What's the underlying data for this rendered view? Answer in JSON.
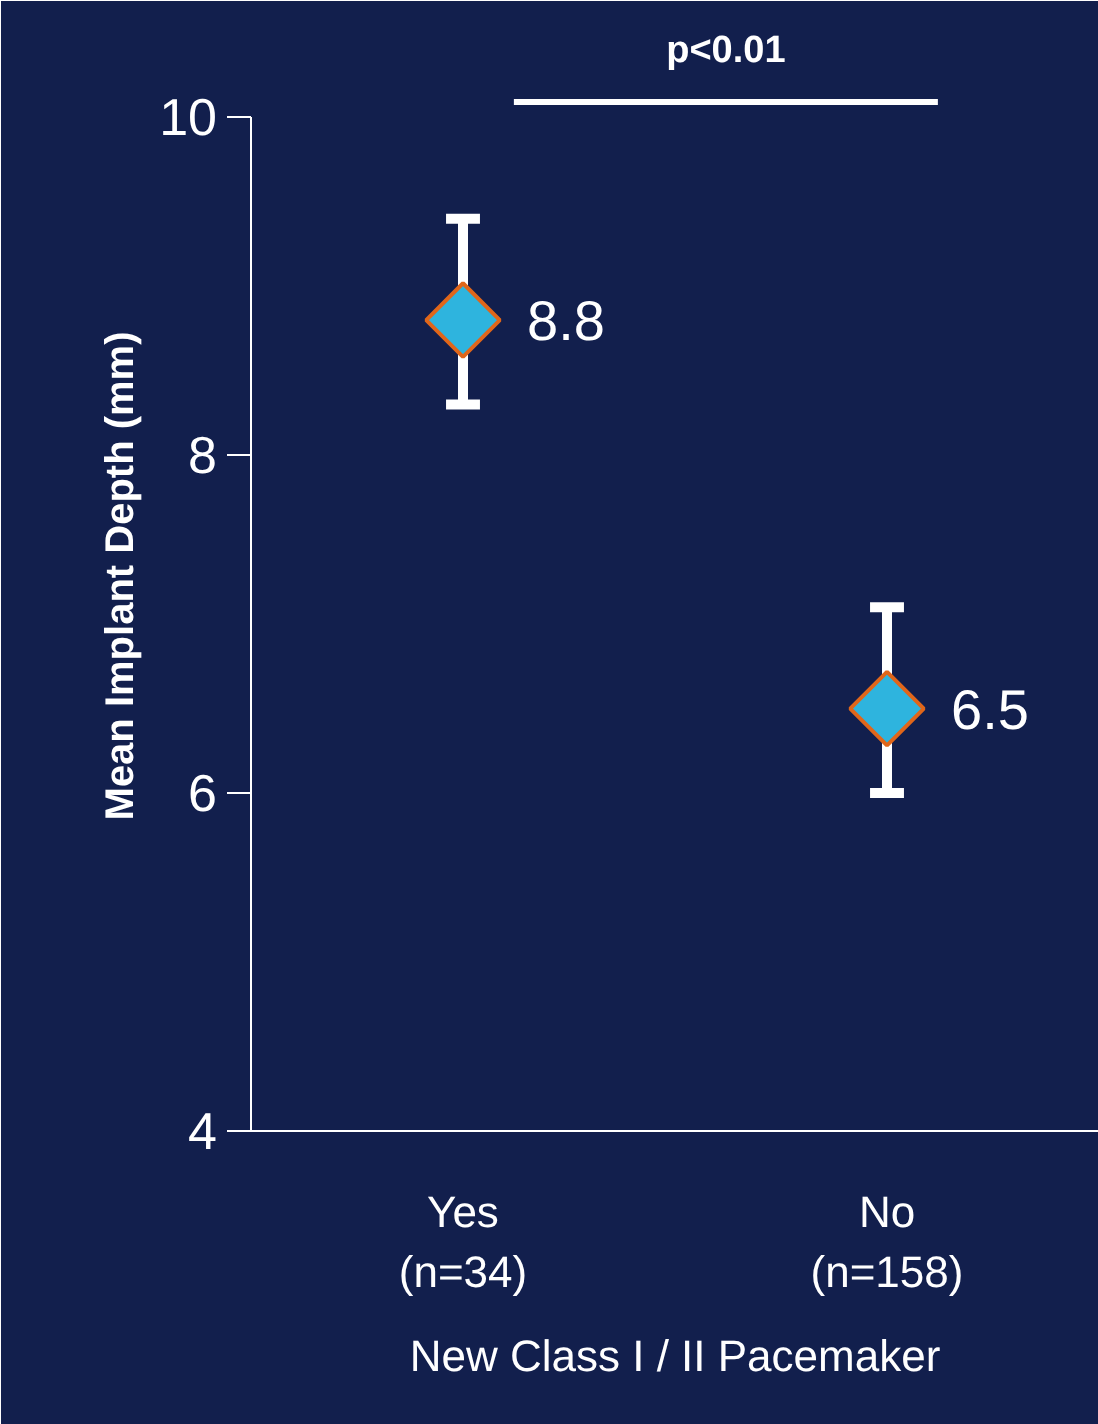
{
  "chart_data": {
    "type": "scatter",
    "categories": [
      "Yes\n(n=34)",
      "No\n(n=158)"
    ],
    "values": [
      8.8,
      6.5
    ],
    "errors": [
      [
        8.3,
        9.4
      ],
      [
        6.0,
        7.1
      ]
    ],
    "color": "#2eb4de",
    "marker": "diamond",
    "data_labels": true,
    "xlabel": "New Class I / II Pacemaker",
    "ylabel": "Mean Implant Depth (mm)",
    "ylim": [
      4,
      10
    ],
    "yticks": [
      4,
      6,
      8,
      10
    ],
    "annotations": [
      "p<0.01"
    ],
    "grid": false
  }
}
